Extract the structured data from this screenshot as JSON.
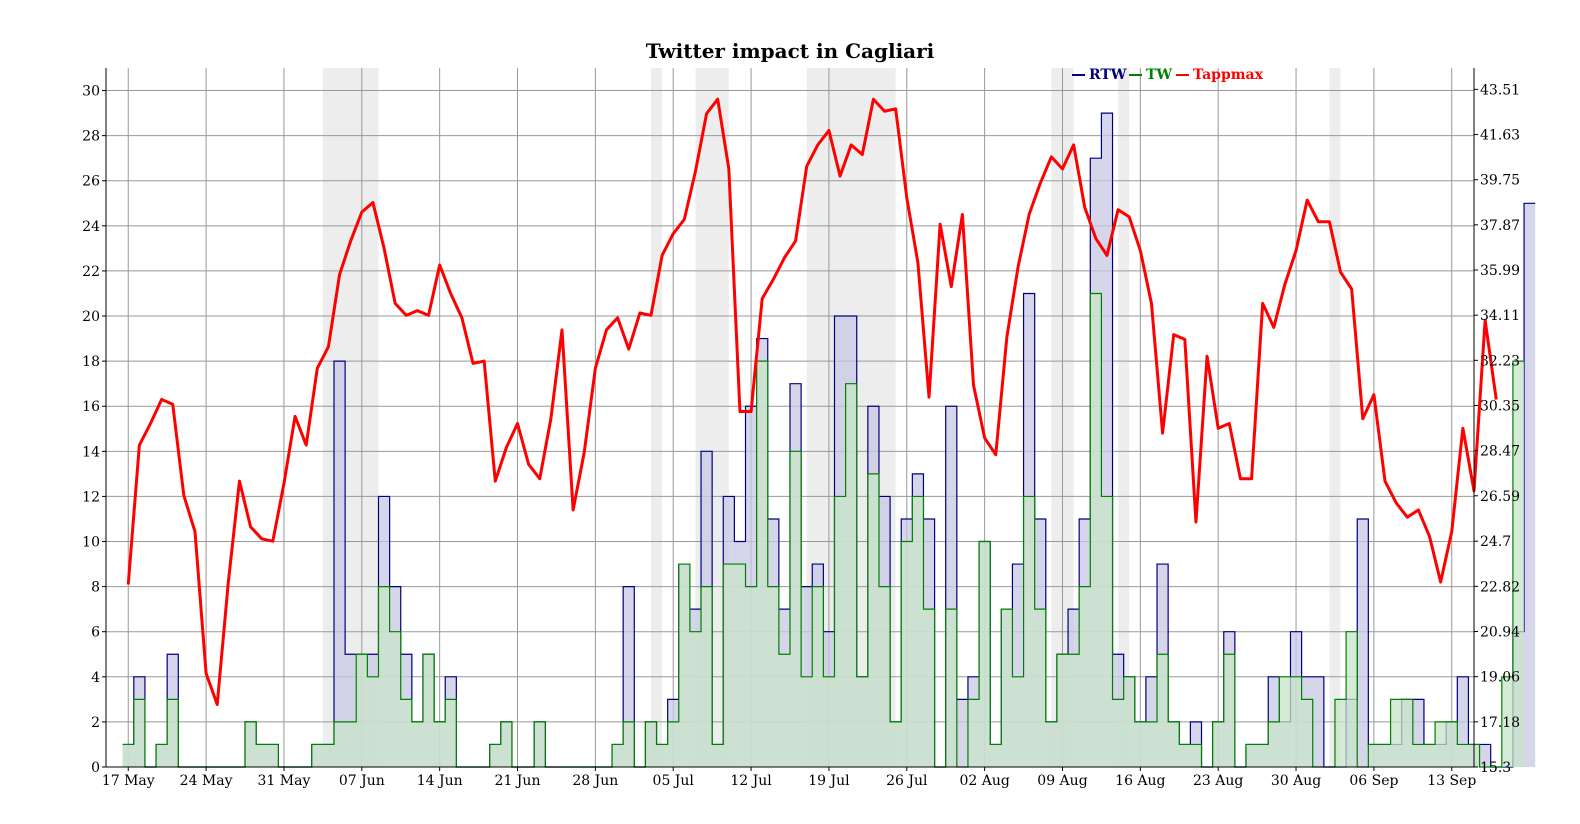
{
  "chart_data": {
    "type": "line",
    "title": "Twitter impact in Cagliari",
    "x_tick_labels": [
      "17 May",
      "24 May",
      "31 May",
      "07 Jun",
      "14 Jun",
      "21 Jun",
      "28 Jun",
      "05 Jul",
      "12 Jul",
      "19 Jul",
      "26 Jul",
      "02 Aug",
      "09 Aug",
      "16 Aug",
      "23 Aug",
      "30 Aug",
      "06 Sep",
      "13 Sep"
    ],
    "y_left": {
      "ylim": [
        0,
        31
      ],
      "ticks": [
        "0",
        "2",
        "4",
        "6",
        "8",
        "10",
        "12",
        "14",
        "16",
        "18",
        "20",
        "22",
        "24",
        "26",
        "28",
        "30"
      ]
    },
    "y_right": {
      "ylim": [
        15.3,
        44.4
      ],
      "ticks": [
        "15.3",
        "17.18",
        "19.06",
        "20.94",
        "22.82",
        "24.7",
        "26.59",
        "28.47",
        "30.35",
        "32.23",
        "34.11",
        "35.99",
        "37.87",
        "39.75",
        "41.63",
        "43.51"
      ]
    },
    "x_range_days": [
      -2,
      121
    ],
    "grid": true,
    "legend_position": "top-right",
    "shaded_periods": [
      [
        17.5,
        22.5
      ],
      [
        47,
        48
      ],
      [
        51,
        54
      ],
      [
        61,
        69
      ],
      [
        83,
        85
      ],
      [
        89,
        90
      ],
      [
        108,
        109
      ]
    ],
    "series": [
      {
        "name": "RTW",
        "color": "#00007f",
        "fill": "#c8c8e4",
        "style": "step",
        "values": [
          1,
          4,
          0,
          1,
          5,
          0,
          0,
          0,
          0,
          0,
          0,
          2,
          1,
          1,
          0,
          0,
          0,
          1,
          1,
          18,
          5,
          5,
          5,
          12,
          8,
          5,
          2,
          5,
          2,
          4,
          0,
          0,
          0,
          1,
          2,
          0,
          0,
          2,
          0,
          0,
          0,
          0,
          0,
          0,
          1,
          8,
          0,
          2,
          1,
          3,
          9,
          7,
          14,
          1,
          12,
          10,
          16,
          19,
          11,
          7,
          17,
          8,
          9,
          6,
          20,
          20,
          4,
          16,
          12,
          2,
          11,
          13,
          11,
          0,
          16,
          3,
          4,
          10,
          1,
          7,
          9,
          21,
          11,
          2,
          5,
          7,
          11,
          27,
          29,
          5,
          4,
          2,
          4,
          9,
          2,
          1,
          2,
          0,
          2,
          6,
          0,
          1,
          1,
          4,
          2,
          6,
          4,
          4,
          0,
          0,
          3,
          11,
          1,
          1,
          1,
          3,
          3,
          1,
          1,
          2,
          4,
          1,
          1,
          0,
          0,
          6,
          25
        ]
      },
      {
        "name": "TW",
        "color": "#007f00",
        "fill": "#c8e4c8",
        "style": "step",
        "values": [
          1,
          3,
          0,
          1,
          3,
          0,
          0,
          0,
          0,
          0,
          0,
          2,
          1,
          1,
          0,
          0,
          0,
          1,
          1,
          2,
          2,
          5,
          4,
          8,
          6,
          3,
          2,
          5,
          2,
          3,
          0,
          0,
          0,
          1,
          2,
          0,
          0,
          2,
          0,
          0,
          0,
          0,
          0,
          0,
          1,
          2,
          0,
          2,
          1,
          2,
          9,
          6,
          8,
          1,
          9,
          9,
          8,
          18,
          8,
          5,
          14,
          4,
          8,
          4,
          12,
          17,
          4,
          13,
          8,
          2,
          10,
          12,
          7,
          0,
          7,
          0,
          3,
          10,
          1,
          7,
          4,
          12,
          7,
          2,
          5,
          5,
          8,
          21,
          12,
          3,
          4,
          2,
          2,
          5,
          2,
          1,
          1,
          0,
          2,
          5,
          0,
          1,
          1,
          2,
          4,
          4,
          3,
          0,
          0,
          3,
          6,
          0,
          1,
          1,
          3,
          3,
          1,
          1,
          2,
          2,
          1,
          1,
          0,
          0,
          4,
          18
        ]
      },
      {
        "name": "Tappmax",
        "color": "#ff0000",
        "style": "line",
        "axis": "right",
        "values": [
          22.9,
          28.7,
          29.6,
          30.6,
          30.4,
          26.6,
          25.1,
          19.2,
          17.9,
          23.0,
          27.2,
          25.3,
          24.8,
          24.7,
          27.1,
          29.9,
          28.7,
          31.9,
          32.8,
          35.8,
          37.2,
          38.4,
          38.8,
          36.9,
          34.6,
          34.1,
          34.3,
          34.1,
          36.2,
          35.0,
          34.0,
          32.1,
          32.2,
          27.2,
          28.6,
          29.6,
          27.9,
          27.3,
          29.8,
          33.5,
          26.0,
          28.4,
          31.9,
          33.5,
          34.0,
          32.7,
          34.2,
          34.1,
          36.6,
          37.5,
          38.1,
          40.1,
          42.5,
          43.1,
          40.2,
          30.1,
          30.1,
          34.8,
          35.6,
          36.5,
          37.2,
          40.3,
          41.2,
          41.8,
          39.9,
          41.2,
          40.8,
          43.1,
          42.6,
          42.7,
          39.0,
          36.3,
          30.7,
          37.9,
          35.3,
          38.3,
          31.2,
          29.0,
          28.3,
          33.2,
          36.1,
          38.3,
          39.6,
          40.7,
          40.2,
          41.2,
          38.6,
          37.3,
          36.6,
          38.5,
          38.2,
          36.8,
          34.6,
          29.2,
          33.3,
          33.1,
          25.5,
          32.4,
          29.4,
          29.6,
          27.3,
          27.3,
          34.6,
          33.6,
          35.4,
          36.8,
          38.9,
          38.0,
          38.0,
          35.9,
          35.2,
          29.8,
          30.8,
          27.2,
          26.3,
          25.7,
          26.0,
          24.9,
          23.0,
          25.1,
          29.4,
          26.8,
          33.9,
          30.6
        ]
      }
    ]
  }
}
